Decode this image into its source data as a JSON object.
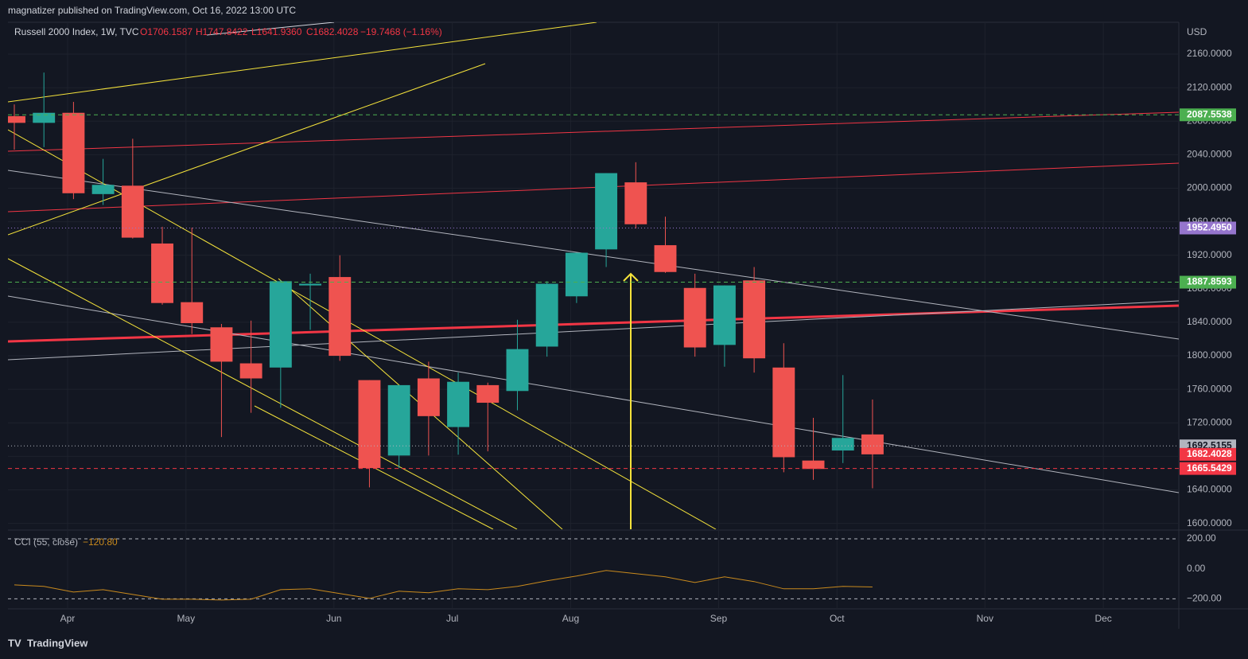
{
  "header": {
    "publisher": "magnatizer published on TradingView.com, Oct 16, 2022 13:00 UTC",
    "footer": "TradingView"
  },
  "chart_data": {
    "type": "candlestick",
    "title": "Russell 2000 Index, 1W, TVC",
    "ohlc_labels": [
      "O1706.1587",
      "H1747.8422",
      "L1641.9360",
      "C1682.4028"
    ],
    "change_label": "−19.7468 (−1.16%)",
    "currency": "USD",
    "up_color": "#26a69a",
    "down_color": "#ef5350",
    "grid": true,
    "series": {
      "open": [
        2086,
        2078,
        2090,
        1993,
        2003,
        1934,
        1864,
        1834,
        1791,
        1786,
        1884,
        1894,
        1771,
        1681,
        1773,
        1715,
        1765,
        1758,
        1811,
        1871,
        1927,
        2007,
        1932,
        1881,
        1813,
        1890,
        1786,
        1675,
        1687,
        1706.1587
      ],
      "high": [
        2100,
        2138,
        2103,
        2035,
        2059,
        1954,
        1953,
        1838,
        1842,
        1890,
        1898,
        1920,
        1771,
        1765,
        1793,
        1780,
        1768,
        1843,
        1889,
        1923,
        2018,
        2031,
        1966,
        1898,
        1884,
        1906,
        1815,
        1726,
        1777,
        1747.8422
      ],
      "low": [
        2046,
        2049,
        1987,
        1980,
        1940,
        1861,
        1826,
        1703,
        1732,
        1738,
        1831,
        1794,
        1643,
        1666,
        1681,
        1682,
        1686,
        1735,
        1799,
        1863,
        1906,
        1952,
        1899,
        1799,
        1787,
        1780,
        1661,
        1652,
        1672,
        1641.936
      ],
      "close": [
        2078,
        2090,
        1994,
        2004,
        1941,
        1863,
        1839,
        1793,
        1773,
        1889,
        1886,
        1800,
        1666,
        1765,
        1728,
        1769,
        1744,
        1808,
        1886,
        1923,
        2018,
        1957,
        1900,
        1810,
        1884,
        1797,
        1679,
        1665,
        1702,
        1682.4028
      ]
    },
    "xlim": [
      -0.215,
      39.35
    ],
    "xticks": [
      {
        "value": 1.8,
        "label": "Apr"
      },
      {
        "value": 5.8,
        "label": "May"
      },
      {
        "value": 10.8,
        "label": "Jun"
      },
      {
        "value": 14.8,
        "label": "Jul"
      },
      {
        "value": 18.8,
        "label": "Aug"
      },
      {
        "value": 23.8,
        "label": "Sep"
      },
      {
        "value": 27.8,
        "label": "Oct"
      },
      {
        "value": 32.8,
        "label": "Nov"
      },
      {
        "value": 36.8,
        "label": "Dec"
      }
    ],
    "ylim": [
      1593,
      2198
    ],
    "yticks": [
      {
        "value": 1600,
        "label": "1600.0000"
      },
      {
        "value": 1640,
        "label": "1640.0000"
      },
      {
        "value": 1680,
        "label": "1680.0000"
      },
      {
        "value": 1720,
        "label": "1720.0000"
      },
      {
        "value": 1760,
        "label": "1760.0000"
      },
      {
        "value": 1800,
        "label": "1800.0000"
      },
      {
        "value": 1840,
        "label": "1840.0000"
      },
      {
        "value": 1880,
        "label": "1880.0000"
      },
      {
        "value": 1920,
        "label": "1920.0000"
      },
      {
        "value": 1960,
        "label": "1960.0000"
      },
      {
        "value": 2000,
        "label": "2000.0000"
      },
      {
        "value": 2040,
        "label": "2040.0000"
      },
      {
        "value": 2080,
        "label": "2080.0000"
      },
      {
        "value": 2120,
        "label": "2120.0000"
      },
      {
        "value": 2160,
        "label": "2160.0000"
      }
    ],
    "price_lines": [
      {
        "value": 2087.5538,
        "label": "2087.5538",
        "color": "#4caf50",
        "style": "dashed"
      },
      {
        "value": 1952.495,
        "label": "1952.4950",
        "color": "#9575cd",
        "style": "dotted"
      },
      {
        "value": 1887.8593,
        "label": "1887.8593",
        "color": "#4caf50",
        "style": "dashed"
      },
      {
        "value": 1692.5155,
        "label": "1692.5155",
        "color": "#b2b5be",
        "style": "dotted"
      },
      {
        "value": 1682.4028,
        "label": "1682.4028",
        "color": "#f23645",
        "style": "none"
      },
      {
        "value": 1665.5429,
        "label": "1665.5429",
        "color": "#f23645",
        "style": "dashed"
      }
    ],
    "cci": {
      "label": "CCI (55, close)",
      "value_label": "−120.80",
      "color": "#c98a1d",
      "values": [
        -107,
        -117,
        -155,
        -139,
        -171,
        -203,
        -203,
        -208,
        -203,
        -139,
        -133,
        -165,
        -197,
        -149,
        -160,
        -133,
        -139,
        -117,
        -80,
        -48,
        -11,
        -32,
        -53,
        -91,
        -53,
        -85,
        -133,
        -133,
        -117,
        -120.8
      ],
      "ylim": [
        -267,
        248
      ],
      "yticks": [
        {
          "value": 200,
          "label": "200.00"
        },
        {
          "value": 0,
          "label": "0.00"
        },
        {
          "value": -200,
          "label": "−200.00"
        }
      ]
    }
  }
}
